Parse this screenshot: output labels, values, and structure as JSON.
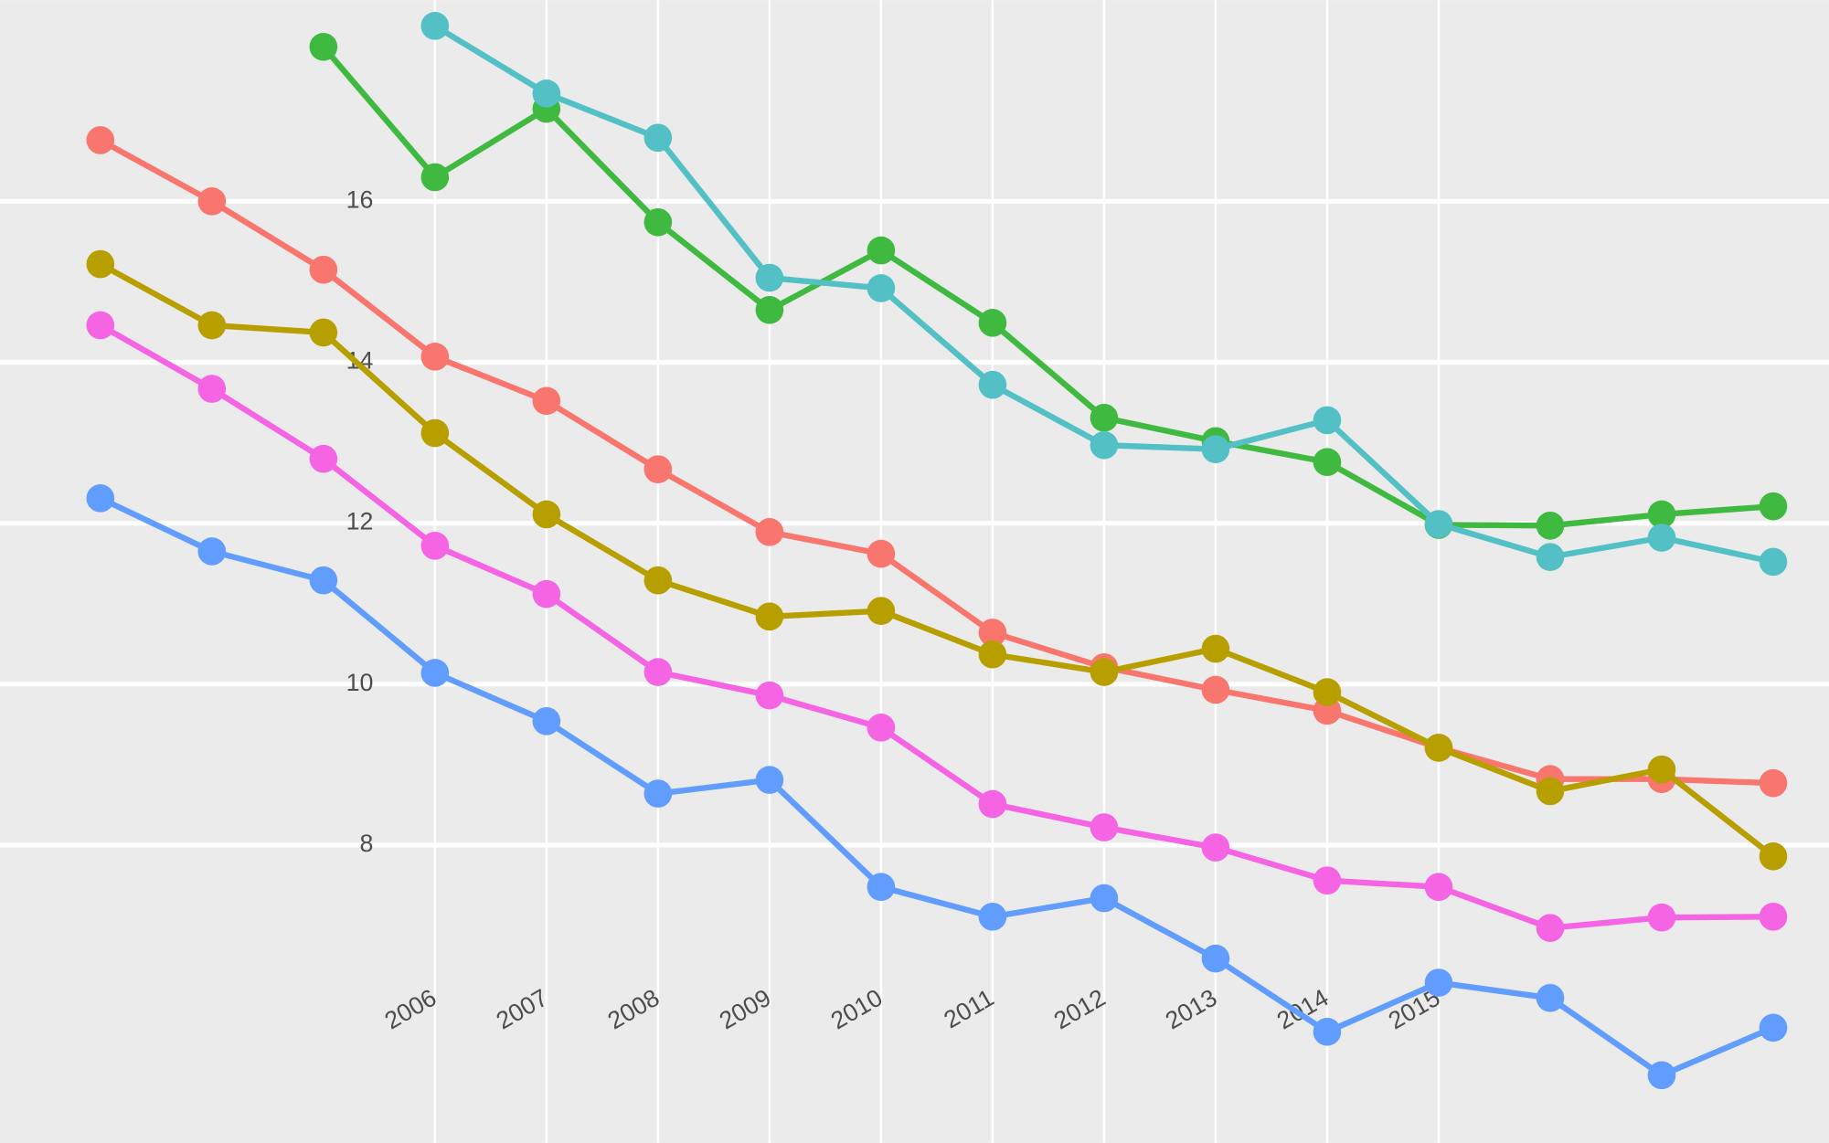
{
  "chart_data": {
    "type": "line",
    "x": [
      2003,
      2004,
      2005,
      2006,
      2007,
      2008,
      2009,
      2010,
      2011,
      2012,
      2013,
      2014,
      2015,
      2016,
      2017,
      2018
    ],
    "xlim": [
      2002.1,
      2018.5
    ],
    "xticks": [
      2006,
      2007,
      2008,
      2009,
      2010,
      2011,
      2012,
      2013,
      2014,
      2015
    ],
    "ylim": [
      4.3,
      18.5
    ],
    "yticks": [
      8,
      10,
      12,
      14,
      16
    ],
    "grid": true,
    "series": [
      {
        "color": "#F8766D",
        "values": [
          16.76,
          16.0,
          15.15,
          14.07,
          13.52,
          12.67,
          11.89,
          11.62,
          10.64,
          10.21,
          9.93,
          9.67,
          9.21,
          8.82,
          8.82,
          8.77
        ]
      },
      {
        "color": "#B79F00",
        "values": [
          15.22,
          14.46,
          14.37,
          13.12,
          12.11,
          11.29,
          10.84,
          10.91,
          10.37,
          10.15,
          10.44,
          9.9,
          9.21,
          8.67,
          8.94,
          7.86
        ]
      },
      {
        "color": "#3FB93F",
        "values": [
          null,
          null,
          17.92,
          16.3,
          17.15,
          15.74,
          14.65,
          15.39,
          14.49,
          13.31,
          13.02,
          12.76,
          11.98,
          11.97,
          12.11,
          12.21
        ]
      },
      {
        "color": "#52C0C4",
        "values": [
          null,
          null,
          null,
          18.18,
          17.34,
          16.79,
          15.05,
          14.92,
          13.72,
          12.97,
          12.92,
          13.28,
          11.99,
          11.58,
          11.82,
          11.52
        ]
      },
      {
        "color": "#619CFF",
        "values": [
          12.31,
          11.65,
          11.29,
          10.14,
          9.54,
          8.64,
          8.81,
          7.48,
          7.11,
          7.34,
          6.59,
          5.68,
          6.29,
          6.1,
          5.14,
          5.73
        ]
      },
      {
        "color": "#F564E3",
        "values": [
          14.46,
          13.67,
          12.8,
          11.72,
          11.12,
          10.15,
          9.86,
          9.46,
          8.51,
          8.22,
          7.97,
          7.56,
          7.48,
          6.97,
          7.1,
          7.11
        ]
      }
    ]
  }
}
